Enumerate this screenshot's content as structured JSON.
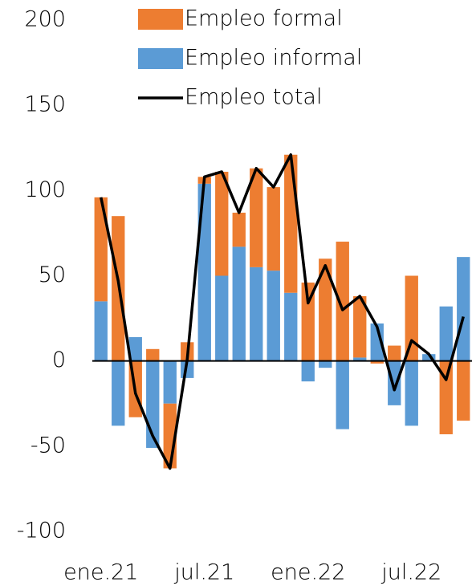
{
  "chart_data": {
    "type": "bar",
    "stacked": true,
    "categories": [
      "ene.21",
      null,
      null,
      null,
      null,
      null,
      "jul.21",
      null,
      null,
      null,
      null,
      null,
      "ene.22",
      null,
      null,
      null,
      null,
      null,
      "jul.22",
      null,
      null,
      null
    ],
    "series": [
      {
        "name": "Empleo formal",
        "color": "#ed7d31",
        "type": "bar",
        "values": [
          61,
          85,
          -33,
          7,
          -38,
          11,
          4,
          61,
          20,
          58,
          49,
          81,
          46,
          60,
          70,
          36,
          -1.5,
          9,
          50,
          0,
          -43,
          -35
        ]
      },
      {
        "name": "Empleo informal",
        "color": "#5b9bd5",
        "type": "bar",
        "values": [
          35,
          -38,
          14,
          -51,
          -25,
          -10,
          104,
          50,
          67,
          55,
          53,
          40,
          -12,
          -4,
          -40,
          2,
          22,
          -26,
          -38,
          4,
          32,
          61
        ]
      },
      {
        "name": "Empleo total",
        "color": "#000000",
        "type": "line",
        "values": [
          96,
          47,
          -19,
          -44,
          -63,
          1,
          108,
          111,
          87,
          113,
          102,
          121,
          34,
          56,
          30,
          38,
          20,
          -17,
          12,
          4,
          -11,
          26
        ]
      }
    ],
    "ylim": [
      -100,
      200
    ],
    "yticks": [
      -100,
      -50,
      0,
      50,
      100,
      150,
      200
    ],
    "grid": false
  }
}
